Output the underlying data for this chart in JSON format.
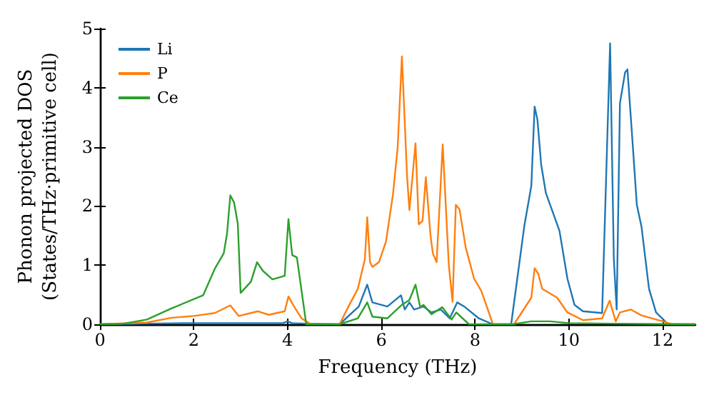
{
  "chart_data": {
    "type": "line",
    "xlabel": "Frequency (THz)",
    "ylabel": "Phonon projected DOS\n(States/THz·primitive cell)",
    "xlim": [
      0,
      12.7
    ],
    "xticks": [
      0,
      2,
      4,
      6,
      8,
      10,
      12
    ],
    "ylim": [
      0,
      5
    ],
    "yticks": [
      0,
      1,
      2,
      3,
      4,
      5
    ],
    "grid": false,
    "legend": "top left",
    "marker": "none",
    "line_style": "solid",
    "series": [
      {
        "name": "Li",
        "color": "#1f77b4",
        "x": [
          0,
          1,
          2,
          3,
          3.9,
          4.0,
          4.1,
          4.4,
          5.11,
          5.52,
          5.7,
          5.81,
          6.13,
          6.42,
          6.5,
          6.6,
          6.7,
          6.9,
          7.07,
          7.27,
          7.46,
          7.62,
          7.77,
          8.08,
          8.38,
          8.77,
          8.9,
          9.05,
          9.2,
          9.27,
          9.33,
          9.41,
          9.51,
          9.8,
          9.97,
          10.12,
          10.3,
          10.71,
          10.88,
          10.96,
          11.02,
          11.09,
          11.2,
          11.25,
          11.35,
          11.45,
          11.55,
          11.71,
          11.86,
          12.12,
          12.7
        ],
        "values": [
          0,
          0.01,
          0.02,
          0.02,
          0.02,
          0.05,
          0.02,
          0.01,
          0,
          0.3,
          0.67,
          0.37,
          0.3,
          0.49,
          0.25,
          0.37,
          0.25,
          0.3,
          0.2,
          0.25,
          0.1,
          0.37,
          0.3,
          0.1,
          0,
          0,
          0.77,
          1.66,
          2.34,
          3.68,
          3.46,
          2.7,
          2.22,
          1.58,
          0.77,
          0.33,
          0.22,
          0.19,
          4.75,
          1.09,
          0.25,
          3.74,
          4.26,
          4.31,
          3.18,
          2.02,
          1.65,
          0.6,
          0.2,
          0,
          0
        ]
      },
      {
        "name": "P",
        "color": "#ff7f0e",
        "x": [
          0,
          1,
          1.53,
          2.0,
          2.45,
          2.78,
          2.96,
          3.37,
          3.6,
          3.94,
          4.02,
          4.14,
          4.3,
          4.5,
          5.11,
          5.3,
          5.5,
          5.65,
          5.7,
          5.76,
          5.81,
          5.95,
          6.1,
          6.25,
          6.35,
          6.44,
          6.55,
          6.6,
          6.73,
          6.8,
          6.88,
          6.95,
          7.05,
          7.1,
          7.18,
          7.31,
          7.44,
          7.52,
          7.59,
          7.67,
          7.8,
          7.98,
          8.13,
          8.25,
          8.38,
          8.83,
          9.2,
          9.27,
          9.35,
          9.43,
          9.75,
          9.97,
          10.3,
          10.71,
          10.87,
          11.0,
          11.09,
          11.32,
          11.55,
          12.0,
          12.2,
          12.7
        ],
        "values": [
          0,
          0.03,
          0.11,
          0.14,
          0.19,
          0.32,
          0.14,
          0.22,
          0.16,
          0.22,
          0.47,
          0.3,
          0.1,
          0,
          0,
          0.3,
          0.6,
          1.1,
          1.81,
          1.05,
          0.97,
          1.05,
          1.4,
          2.2,
          3.0,
          4.53,
          2.5,
          1.93,
          3.06,
          1.69,
          1.75,
          2.49,
          1.5,
          1.2,
          1.05,
          3.04,
          1.0,
          0.38,
          2.02,
          1.94,
          1.3,
          0.77,
          0.57,
          0.3,
          0,
          0,
          0.45,
          0.95,
          0.85,
          0.6,
          0.45,
          0.2,
          0.07,
          0.1,
          0.4,
          0.05,
          0.2,
          0.25,
          0.15,
          0.05,
          0,
          0
        ]
      },
      {
        "name": "Ce",
        "color": "#2ca02c",
        "x": [
          0,
          0.5,
          1.0,
          1.53,
          2.2,
          2.45,
          2.64,
          2.71,
          2.78,
          2.86,
          2.94,
          3.0,
          3.22,
          3.35,
          3.48,
          3.68,
          3.94,
          4.02,
          4.1,
          4.2,
          4.4,
          5.11,
          5.5,
          5.7,
          5.81,
          6.13,
          6.44,
          6.6,
          6.73,
          6.83,
          6.9,
          7.07,
          7.3,
          7.5,
          7.6,
          7.87,
          8.8,
          9.2,
          9.6,
          10.0,
          11.0,
          12.7
        ],
        "values": [
          0,
          0.01,
          0.08,
          0.27,
          0.49,
          0.94,
          1.2,
          1.53,
          2.18,
          2.06,
          1.7,
          0.53,
          0.72,
          1.05,
          0.9,
          0.76,
          0.82,
          1.78,
          1.17,
          1.13,
          0,
          0,
          0.1,
          0.37,
          0.13,
          0.1,
          0.33,
          0.41,
          0.67,
          0.29,
          0.33,
          0.17,
          0.29,
          0.08,
          0.2,
          0,
          0,
          0.05,
          0.05,
          0.02,
          0.01,
          0
        ]
      }
    ]
  }
}
